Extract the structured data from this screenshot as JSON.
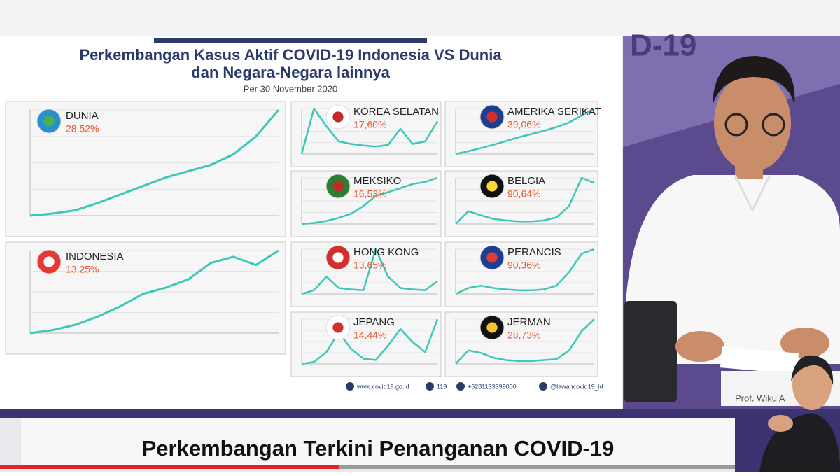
{
  "slide": {
    "title_line1": "Perkembangan Kasus Aktif COVID-19 Indonesia VS Dunia",
    "title_line2": "dan Negara-Negara lainnya",
    "subtitle": "Per 30 November 2020",
    "panels": [
      {
        "name": "DUNIA",
        "percent": "28,52%",
        "values": [
          0,
          2,
          5,
          12,
          20,
          28,
          36,
          42,
          48,
          58,
          75,
          100
        ]
      },
      {
        "name": "INDONESIA",
        "percent": "13,25%",
        "values": [
          0,
          3,
          8,
          16,
          26,
          38,
          44,
          52,
          68,
          74,
          66,
          80
        ]
      },
      {
        "name": "KOREA SELATAN",
        "percent": "17,60%",
        "values": [
          5,
          95,
          60,
          30,
          25,
          22,
          20,
          23,
          55,
          25,
          30,
          70
        ]
      },
      {
        "name": "AMERIKA SERIKAT",
        "percent": "39,06%",
        "values": [
          2,
          8,
          15,
          22,
          30,
          38,
          45,
          52,
          60,
          70,
          85,
          100
        ]
      },
      {
        "name": "MEKSIKO",
        "percent": "16,53%",
        "values": [
          0,
          2,
          6,
          12,
          20,
          35,
          55,
          62,
          70,
          78,
          82,
          90
        ]
      },
      {
        "name": "BELGIA",
        "percent": "90,64%",
        "values": [
          5,
          30,
          22,
          15,
          12,
          10,
          10,
          12,
          18,
          40,
          95,
          85
        ]
      },
      {
        "name": "HONG KONG",
        "percent": "13,65%",
        "values": [
          2,
          10,
          40,
          15,
          12,
          10,
          100,
          40,
          15,
          12,
          10,
          30
        ]
      },
      {
        "name": "PERANCIS",
        "percent": "90,36%",
        "values": [
          2,
          15,
          20,
          15,
          12,
          10,
          10,
          12,
          20,
          50,
          90,
          100
        ]
      },
      {
        "name": "JEPANG",
        "percent": "14,44%",
        "values": [
          2,
          5,
          20,
          50,
          25,
          10,
          8,
          30,
          55,
          35,
          20,
          70
        ]
      },
      {
        "name": "JERMAN",
        "percent": "28,73%",
        "values": [
          2,
          30,
          25,
          15,
          10,
          8,
          8,
          10,
          12,
          30,
          70,
          95
        ]
      }
    ],
    "footer": [
      "www.covid19.go.id",
      "119",
      "+6281133399000",
      "@lawancovid19_id"
    ]
  },
  "banner": "Perkembangan Terkini Penanganan COVID-19",
  "nameplate": "Prof. Wiku A"
}
